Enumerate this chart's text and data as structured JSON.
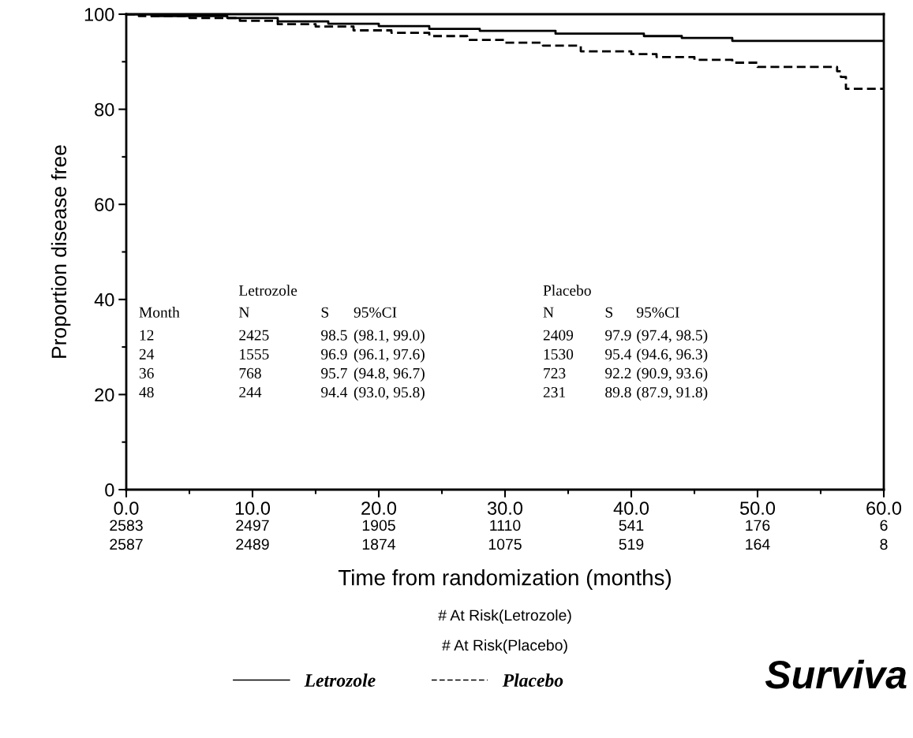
{
  "chart_data": {
    "type": "step",
    "xlabel": "Time from randomization (months)",
    "ylabel": "Proportion disease free",
    "xlim": [
      0,
      60
    ],
    "ylim": [
      0,
      100
    ],
    "xticks": [
      {
        "value": 0,
        "label": "0.0"
      },
      {
        "value": 5,
        "label": null
      },
      {
        "value": 10,
        "label": "10.0"
      },
      {
        "value": 15,
        "label": null
      },
      {
        "value": 20,
        "label": "20.0"
      },
      {
        "value": 25,
        "label": null
      },
      {
        "value": 30,
        "label": "30.0"
      },
      {
        "value": 35,
        "label": null
      },
      {
        "value": 40,
        "label": "40.0"
      },
      {
        "value": 45,
        "label": null
      },
      {
        "value": 50,
        "label": "50.0"
      },
      {
        "value": 55,
        "label": null
      },
      {
        "value": 60,
        "label": "60.0"
      }
    ],
    "yticks": [
      0,
      {
        "value": 10,
        "label": null
      },
      20,
      {
        "value": 30,
        "label": null
      },
      40,
      {
        "value": 50,
        "label": null
      },
      60,
      {
        "value": 70,
        "label": null
      },
      80,
      {
        "value": 90,
        "label": null
      },
      100
    ],
    "grid": false,
    "legend": "bottom",
    "series": [
      {
        "name": "Letrozole",
        "color": "#000000",
        "line_style": "solid",
        "x": [
          0,
          2,
          8,
          12,
          16,
          20,
          24,
          28,
          34,
          41,
          44,
          48,
          60
        ],
        "values": [
          100,
          99.6,
          99.2,
          98.5,
          98.0,
          97.5,
          96.9,
          96.5,
          95.9,
          95.4,
          95.0,
          94.4,
          94.4
        ]
      },
      {
        "name": "Placebo",
        "color": "#000000",
        "line_style": "dashed",
        "x": [
          0,
          1,
          5,
          9,
          12,
          15,
          18,
          21,
          24,
          27,
          30,
          33,
          36,
          40,
          42,
          45,
          48,
          50,
          56.3,
          56.6,
          57,
          60
        ],
        "values": [
          100,
          99.6,
          99.2,
          98.6,
          97.9,
          97.4,
          96.6,
          96.1,
          95.4,
          94.6,
          94.0,
          93.4,
          92.2,
          91.6,
          91.0,
          90.4,
          89.8,
          88.9,
          88.0,
          86.8,
          84.3,
          84.3
        ]
      }
    ],
    "annotations": [
      "Letrozole",
      "Placebo",
      "Month",
      "N",
      "S",
      "95%CI",
      "N",
      "S",
      "95%CI",
      "12",
      "2425",
      "98.5",
      "(98.1, 99.0)",
      "2409",
      "97.9",
      "(97.4, 98.5)",
      "24",
      "1555",
      "96.9",
      "(96.1, 97.6)",
      "1530",
      "95.4",
      "(94.6, 96.3)",
      "36",
      "768",
      "95.7",
      "(94.8, 96.7)",
      "723",
      "92.2",
      "(90.9, 93.6)",
      "48",
      "244",
      "94.4",
      "(93.0, 95.8)",
      "231",
      "89.8",
      "(87.9, 91.8)",
      "2583",
      "2497",
      "1905",
      "1110",
      "541",
      "176",
      "6",
      "2587",
      "2489",
      "1874",
      "1075",
      "519",
      "164",
      "8",
      "# At Risk(Letrozole)",
      "# At Risk(Placebo)",
      "Surviva"
    ]
  }
}
